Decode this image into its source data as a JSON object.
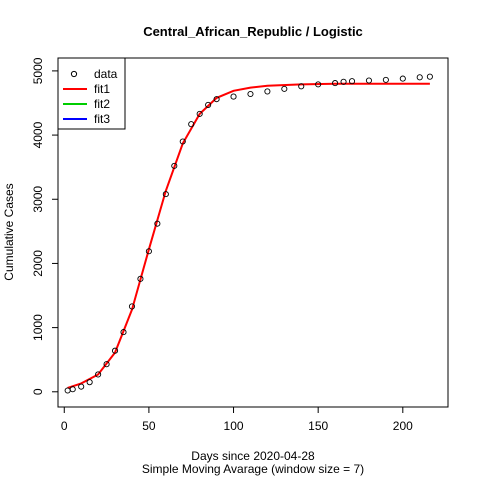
{
  "chart_data": {
    "type": "line",
    "title": "Central_African_Republic / Logistic",
    "xlabel": "Days since 2020-04-28",
    "xlabel_sub": "Simple Moving Avarage (window size = 7)",
    "ylabel": "Cumulative Cases",
    "xlim": [
      -3.7,
      226.7
    ],
    "ylim": [
      -237,
      5201
    ],
    "x_ticks": [
      0,
      50,
      100,
      150,
      200
    ],
    "y_ticks": [
      0,
      1000,
      2000,
      3000,
      4000,
      5000
    ],
    "grid": false,
    "legend_position": "top-left",
    "legend": [
      {
        "label": "data",
        "kind": "point",
        "color": "#000000"
      },
      {
        "label": "fit1",
        "kind": "line",
        "color": "#ff0000"
      },
      {
        "label": "fit2",
        "kind": "line",
        "color": "#00cd00"
      },
      {
        "label": "fit3",
        "kind": "line",
        "color": "#0000ff"
      }
    ],
    "series": [
      {
        "name": "data",
        "kind": "points",
        "color": "#000000",
        "x": [
          2,
          5,
          10,
          15,
          20,
          25,
          30,
          35,
          40,
          45,
          50,
          55,
          60,
          65,
          70,
          75,
          80,
          85,
          90,
          100,
          110,
          120,
          130,
          140,
          150,
          160,
          165,
          170,
          180,
          190,
          200,
          210,
          216
        ],
        "y": [
          20,
          40,
          80,
          150,
          270,
          430,
          640,
          930,
          1330,
          1760,
          2190,
          2620,
          3080,
          3520,
          3900,
          4170,
          4330,
          4470,
          4560,
          4600,
          4640,
          4680,
          4720,
          4760,
          4790,
          4810,
          4830,
          4840,
          4850,
          4860,
          4880,
          4900,
          4910
        ]
      },
      {
        "name": "fit1",
        "kind": "line",
        "color": "#ff0000",
        "x": [
          2,
          10,
          20,
          30,
          40,
          50,
          60,
          70,
          80,
          90,
          100,
          110,
          120,
          140,
          160,
          180,
          200,
          216
        ],
        "y": [
          60,
          130,
          270,
          610,
          1280,
          2220,
          3130,
          3870,
          4330,
          4580,
          4690,
          4740,
          4770,
          4790,
          4800,
          4800,
          4800,
          4800
        ]
      }
    ]
  }
}
